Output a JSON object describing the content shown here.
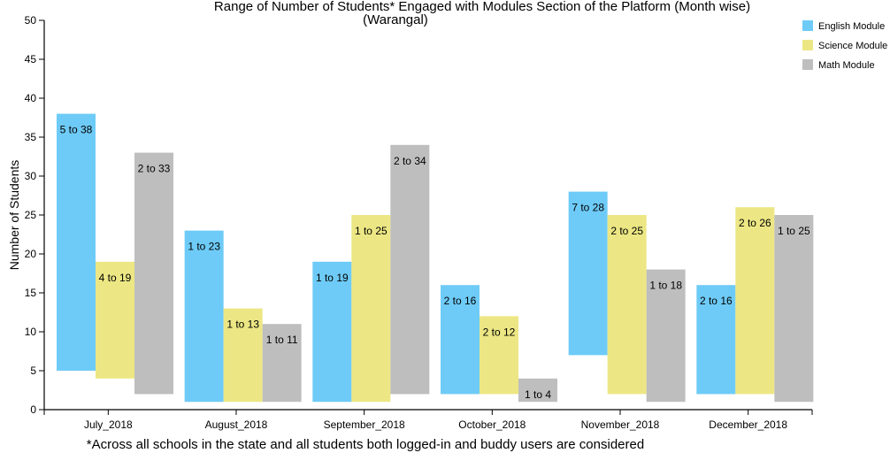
{
  "chart_data": {
    "type": "bar",
    "subtype": "floating-range",
    "title": "Range of Number of Students* Engaged with Modules Section of the Platform (Month wise)",
    "subtitle": "(Warangal)",
    "ylabel": "Number of Students",
    "xlabel": "",
    "ylim": [
      0,
      50
    ],
    "yticks": [
      0,
      5,
      10,
      15,
      20,
      25,
      30,
      35,
      40,
      45,
      50
    ],
    "grid": false,
    "legend_position": "top-right",
    "categories": [
      "July_2018",
      "August_2018",
      "September_2018",
      "October_2018",
      "November_2018",
      "December_2018"
    ],
    "series": [
      {
        "name": "English Module",
        "color": "#6ecbf7",
        "ranges": [
          [
            5,
            38
          ],
          [
            1,
            23
          ],
          [
            1,
            19
          ],
          [
            2,
            16
          ],
          [
            7,
            28
          ],
          [
            2,
            16
          ]
        ],
        "labels": [
          "5 to 38",
          "1 to 23",
          "1 to 19",
          "2 to 16",
          "7 to 28",
          "2 to 16"
        ]
      },
      {
        "name": "Science Module",
        "color": "#ece784",
        "ranges": [
          [
            4,
            19
          ],
          [
            1,
            13
          ],
          [
            1,
            25
          ],
          [
            2,
            12
          ],
          [
            2,
            25
          ],
          [
            2,
            26
          ]
        ],
        "labels": [
          "4 to 19",
          "1 to 13",
          "1 to 25",
          "2 to 12",
          "2 to 25",
          "2 to 26"
        ]
      },
      {
        "name": "Math Module",
        "color": "#bebebe",
        "ranges": [
          [
            2,
            33
          ],
          [
            1,
            11
          ],
          [
            2,
            34
          ],
          [
            1,
            4
          ],
          [
            1,
            18
          ],
          [
            1,
            25
          ]
        ],
        "labels": [
          "2 to 33",
          "1 to 11",
          "2 to 34",
          "1 to 4",
          "1 to 18",
          "1 to 25"
        ]
      }
    ],
    "footnote": "*Across all schools in the state and all students both logged-in and buddy users are considered"
  }
}
